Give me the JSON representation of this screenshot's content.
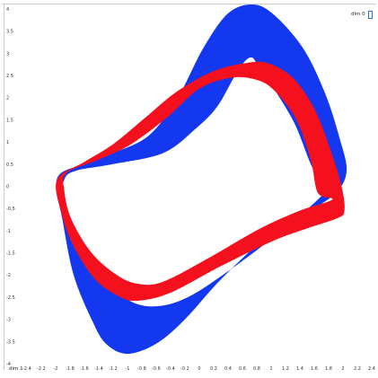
{
  "controls": {
    "dim_label": "dim 0"
  },
  "colors": {
    "blue_band": "#1437f0",
    "red_band": "#f4111d",
    "frame": "#cccccc"
  },
  "chart_data": {
    "type": "area",
    "title": "",
    "xlabel": "dim 1",
    "ylabel": "",
    "xlim": [
      -2.4,
      2.4
    ],
    "ylim": [
      -4,
      4.1
    ],
    "grid": false,
    "x_ticks": [
      "-2.4",
      "-2.2",
      "-2",
      "-1.8",
      "-1.6",
      "-1.4",
      "-1.2",
      "-1",
      "-0.8",
      "-0.6",
      "-0.4",
      "-0.2",
      "0",
      "0.2",
      "0.4",
      "0.6",
      "0.8",
      "1",
      "1.2",
      "1.4",
      "1.6",
      "1.8",
      "2",
      "2.2",
      "2.4"
    ],
    "y_ticks": [
      "4",
      "3.5",
      "3",
      "2.5",
      "2",
      "1.5",
      "1",
      "0.5",
      "0",
      "-0.5",
      "-1",
      "-1.5",
      "-2",
      "-2.5",
      "-3",
      "-3.5",
      "-4"
    ],
    "series": [
      {
        "color": "blue",
        "outer": [
          [
            -1.98,
            0.18
          ],
          [
            -1.9,
            -0.8
          ],
          [
            -1.75,
            -2.0
          ],
          [
            -1.5,
            -3.0
          ],
          [
            -1.3,
            -3.55
          ],
          [
            -1.0,
            -3.78
          ],
          [
            -0.6,
            -3.55
          ],
          [
            -0.2,
            -3.0
          ],
          [
            0.3,
            -2.1
          ],
          [
            0.9,
            -1.2
          ],
          [
            1.5,
            -0.6
          ],
          [
            1.9,
            -0.15
          ],
          [
            2.05,
            0.35
          ],
          [
            1.95,
            1.1
          ],
          [
            1.75,
            2.1
          ],
          [
            1.45,
            3.1
          ],
          [
            1.05,
            3.85
          ],
          [
            0.75,
            4.1
          ],
          [
            0.4,
            3.9
          ],
          [
            0.05,
            3.1
          ],
          [
            -0.3,
            2.0
          ],
          [
            -0.7,
            1.15
          ],
          [
            -1.2,
            0.75
          ],
          [
            -1.6,
            0.5
          ],
          [
            -1.98,
            0.18
          ]
        ],
        "inner": [
          [
            1.85,
            0.1
          ],
          [
            1.6,
            0.35
          ],
          [
            1.3,
            1.5
          ],
          [
            0.85,
            2.65
          ],
          [
            0.7,
            2.9
          ],
          [
            0.5,
            2.5
          ],
          [
            0.25,
            1.8
          ],
          [
            -0.05,
            1.3
          ],
          [
            -0.5,
            0.75
          ],
          [
            -1.2,
            0.5
          ],
          [
            -1.72,
            0.35
          ],
          [
            -1.88,
            0.15
          ],
          [
            -1.9,
            -0.35
          ],
          [
            -1.7,
            -1.2
          ],
          [
            -1.35,
            -2.05
          ],
          [
            -0.95,
            -2.6
          ],
          [
            -0.55,
            -2.7
          ],
          [
            -0.1,
            -2.45
          ],
          [
            0.5,
            -1.8
          ],
          [
            1.15,
            -1.0
          ],
          [
            1.65,
            -0.3
          ],
          [
            1.85,
            0.1
          ]
        ]
      },
      {
        "color": "red",
        "outer": [
          [
            -1.98,
            0.15
          ],
          [
            -1.92,
            -0.6
          ],
          [
            -1.75,
            -1.35
          ],
          [
            -1.45,
            -2.1
          ],
          [
            -1.1,
            -2.5
          ],
          [
            -0.85,
            -2.58
          ],
          [
            -0.4,
            -2.4
          ],
          [
            0.3,
            -1.8
          ],
          [
            1.0,
            -1.25
          ],
          [
            1.5,
            -0.95
          ],
          [
            1.92,
            -0.72
          ],
          [
            2.02,
            -0.55
          ],
          [
            1.98,
            0.0
          ],
          [
            1.82,
            0.85
          ],
          [
            1.6,
            1.75
          ],
          [
            1.3,
            2.45
          ],
          [
            0.95,
            2.78
          ],
          [
            0.65,
            2.78
          ],
          [
            0.2,
            2.6
          ],
          [
            -0.3,
            2.15
          ],
          [
            -0.75,
            1.55
          ],
          [
            -1.2,
            0.95
          ],
          [
            -1.6,
            0.55
          ],
          [
            -1.98,
            0.15
          ]
        ],
        "inner": [
          [
            1.85,
            -0.3
          ],
          [
            1.65,
            -0.15
          ],
          [
            1.55,
            0.6
          ],
          [
            1.35,
            1.5
          ],
          [
            1.05,
            2.15
          ],
          [
            0.8,
            2.4
          ],
          [
            0.45,
            2.45
          ],
          [
            0.0,
            2.2
          ],
          [
            -0.45,
            1.55
          ],
          [
            -0.95,
            0.95
          ],
          [
            -1.4,
            0.6
          ],
          [
            -1.85,
            0.3
          ],
          [
            -1.88,
            -0.1
          ],
          [
            -1.78,
            -0.75
          ],
          [
            -1.5,
            -1.5
          ],
          [
            -1.15,
            -2.0
          ],
          [
            -0.85,
            -2.2
          ],
          [
            -0.5,
            -2.15
          ],
          [
            0.15,
            -1.6
          ],
          [
            0.85,
            -0.95
          ],
          [
            1.4,
            -0.55
          ],
          [
            1.85,
            -0.3
          ]
        ]
      }
    ]
  }
}
